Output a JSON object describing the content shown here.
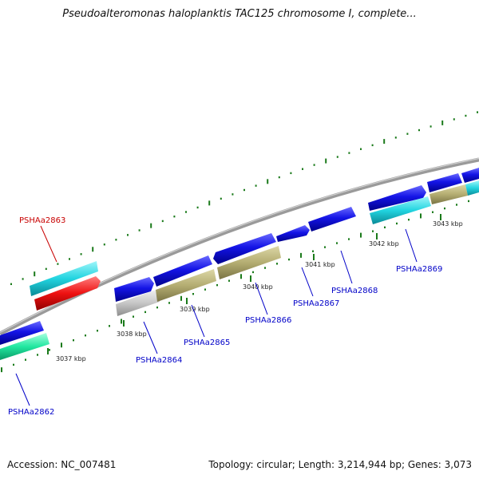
{
  "title": "Pseudoalteromonas haloplanktis TAC125 chromosome I, complete...",
  "footer": {
    "accession": "Accession: NC_007481",
    "summary": "Topology: circular; Length: 3,214,944 bp; Genes: 3,073"
  },
  "kbp_labels": [
    "3037 kbp",
    "3038 kbp",
    "3039 kbp",
    "3040 kbp",
    "3041 kbp",
    "3042 kbp",
    "3043 kbp"
  ],
  "gene_labels": [
    {
      "text": "PSHAa2862",
      "color": "#0000c8"
    },
    {
      "text": "PSHAa2863",
      "color": "#c80000"
    },
    {
      "text": "PSHAa2864",
      "color": "#0000c8"
    },
    {
      "text": "PSHAa2865",
      "color": "#0000c8"
    },
    {
      "text": "PSHAa2866",
      "color": "#0000c8"
    },
    {
      "text": "PSHAa2867",
      "color": "#0000c8"
    },
    {
      "text": "PSHAa2868",
      "color": "#0000c8"
    },
    {
      "text": "PSHAa2869",
      "color": "#0000c8"
    }
  ],
  "colors": {
    "backbone": "#808080",
    "tick": "#1a7a1a",
    "blue": "#1010e0",
    "cyan": "#22d4e0",
    "red": "#ee1111",
    "green": "#22e8a0",
    "olive": "#b4ad72",
    "gray": "#c8c8c8"
  }
}
